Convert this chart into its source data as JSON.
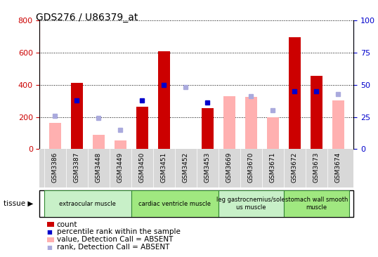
{
  "title": "GDS276 / U86379_at",
  "samples": [
    "GSM3386",
    "GSM3387",
    "GSM3448",
    "GSM3449",
    "GSM3450",
    "GSM3451",
    "GSM3452",
    "GSM3453",
    "GSM3669",
    "GSM3670",
    "GSM3671",
    "GSM3672",
    "GSM3673",
    "GSM3674"
  ],
  "count_values": [
    null,
    413,
    null,
    null,
    262,
    607,
    null,
    253,
    null,
    null,
    null,
    695,
    456,
    null
  ],
  "count_absent": [
    165,
    null,
    90,
    55,
    null,
    null,
    null,
    null,
    330,
    325,
    200,
    null,
    null,
    305
  ],
  "pct_present": [
    null,
    38,
    null,
    null,
    38,
    50,
    null,
    36,
    null,
    null,
    null,
    45,
    45,
    null
  ],
  "pct_absent": [
    26,
    null,
    24,
    15,
    null,
    null,
    48,
    null,
    null,
    41,
    30,
    null,
    null,
    43
  ],
  "tissue_groups": [
    {
      "label": "extraocular muscle",
      "start": 0,
      "end": 3,
      "color": "#c8f0c8"
    },
    {
      "label": "cardiac ventricle muscle",
      "start": 4,
      "end": 7,
      "color": "#a0e880"
    },
    {
      "label": "leg gastrocnemius/sole\nus muscle",
      "start": 8,
      "end": 10,
      "color": "#c8f0c8"
    },
    {
      "label": "stomach wall smooth\nmuscle",
      "start": 11,
      "end": 13,
      "color": "#a0e880"
    }
  ],
  "left_ylim": [
    0,
    800
  ],
  "right_ylim": [
    0,
    100
  ],
  "left_yticks": [
    0,
    200,
    400,
    600,
    800
  ],
  "right_yticks": [
    0,
    25,
    50,
    75,
    100
  ],
  "left_color": "#cc0000",
  "right_color": "#0000cc",
  "bar_color_present": "#cc0000",
  "bar_color_absent": "#ffb0b0",
  "dot_color_present": "#0000cc",
  "dot_color_absent": "#aaaadd",
  "plot_bg_color": "#ffffff",
  "fig_bg_color": "#ffffff",
  "bar_width": 0.55,
  "dot_size": 5
}
